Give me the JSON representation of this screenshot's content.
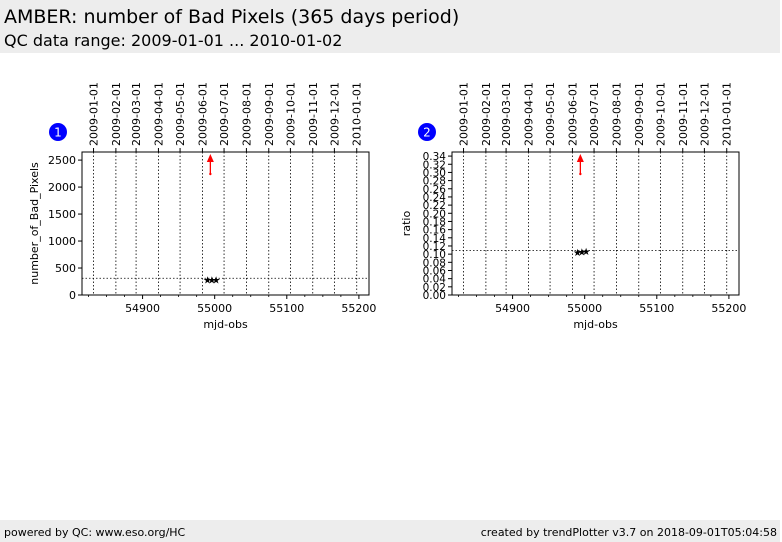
{
  "header": {
    "title": "AMBER: number of Bad Pixels (365 days period)",
    "subtitle": "QC data range: 2009-01-01 ... 2010-01-02"
  },
  "footer": {
    "left": "powered by QC: www.eso.org/HC",
    "right": "created by trendPlotter v3.7 on 2018-09-01T05:04:58"
  },
  "colors": {
    "badge": "#0000ff",
    "arrow": "#ff0000",
    "marker": "#000000",
    "band": "#ededed"
  },
  "chart_data": [
    {
      "type": "scatter",
      "badge": "1",
      "xlabel": "mjd-obs",
      "ylabel": "number_of_Bad_Pixels",
      "xlim": [
        54816,
        55214
      ],
      "ylim": [
        0,
        2650
      ],
      "xticks": [
        54900,
        55000,
        55100,
        55200
      ],
      "xtick_labels": [
        "54900",
        "55000",
        "55100",
        "55200"
      ],
      "yticks": [
        0,
        500,
        1000,
        1500,
        2000,
        2500
      ],
      "ytick_labels": [
        "0",
        "500",
        "1000",
        "1500",
        "2000",
        "2500"
      ],
      "date_ticks": [
        54832,
        54863,
        54891,
        54922,
        54952,
        54983,
        55013,
        55044,
        55075,
        55105,
        55136,
        55166,
        55197
      ],
      "date_labels": [
        "2009-01-01",
        "2009-02-01",
        "2009-03-01",
        "2009-04-01",
        "2009-05-01",
        "2009-06-01",
        "2009-07-01",
        "2009-08-01",
        "2009-09-01",
        "2009-10-01",
        "2009-11-01",
        "2009-12-01",
        "2010-01-01"
      ],
      "reference_line": 310,
      "points": [
        {
          "x": 54990,
          "y": 280
        },
        {
          "x": 54996,
          "y": 282
        },
        {
          "x": 55002,
          "y": 280
        }
      ],
      "outlier_x": 54994
    },
    {
      "type": "scatter",
      "badge": "2",
      "xlabel": "mjd-obs",
      "ylabel": "ratio",
      "xlim": [
        54816,
        55214
      ],
      "ylim": [
        0,
        0.35
      ],
      "xticks": [
        54900,
        55000,
        55100,
        55200
      ],
      "xtick_labels": [
        "54900",
        "55000",
        "55100",
        "55200"
      ],
      "yticks": [
        0,
        0.02,
        0.04,
        0.06,
        0.08,
        0.1,
        0.12,
        0.14,
        0.16,
        0.18,
        0.2,
        0.22,
        0.24,
        0.26,
        0.28,
        0.3,
        0.32,
        0.34
      ],
      "ytick_labels": [
        "0.00",
        "0.02",
        "0.04",
        "0.06",
        "0.08",
        "0.10",
        "0.12",
        "0.14",
        "0.16",
        "0.18",
        "0.20",
        "0.22",
        "0.24",
        "0.26",
        "0.28",
        "0.30",
        "0.32",
        "0.34"
      ],
      "date_ticks": [
        54832,
        54863,
        54891,
        54922,
        54952,
        54983,
        55013,
        55044,
        55075,
        55105,
        55136,
        55166,
        55197
      ],
      "date_labels": [
        "2009-01-01",
        "2009-02-01",
        "2009-03-01",
        "2009-04-01",
        "2009-05-01",
        "2009-06-01",
        "2009-07-01",
        "2009-08-01",
        "2009-09-01",
        "2009-10-01",
        "2009-11-01",
        "2009-12-01",
        "2010-01-01"
      ],
      "reference_line": 0.109,
      "points": [
        {
          "x": 54990,
          "y": 0.104
        },
        {
          "x": 54996,
          "y": 0.105
        },
        {
          "x": 55002,
          "y": 0.106
        }
      ],
      "outlier_x": 54994
    }
  ]
}
